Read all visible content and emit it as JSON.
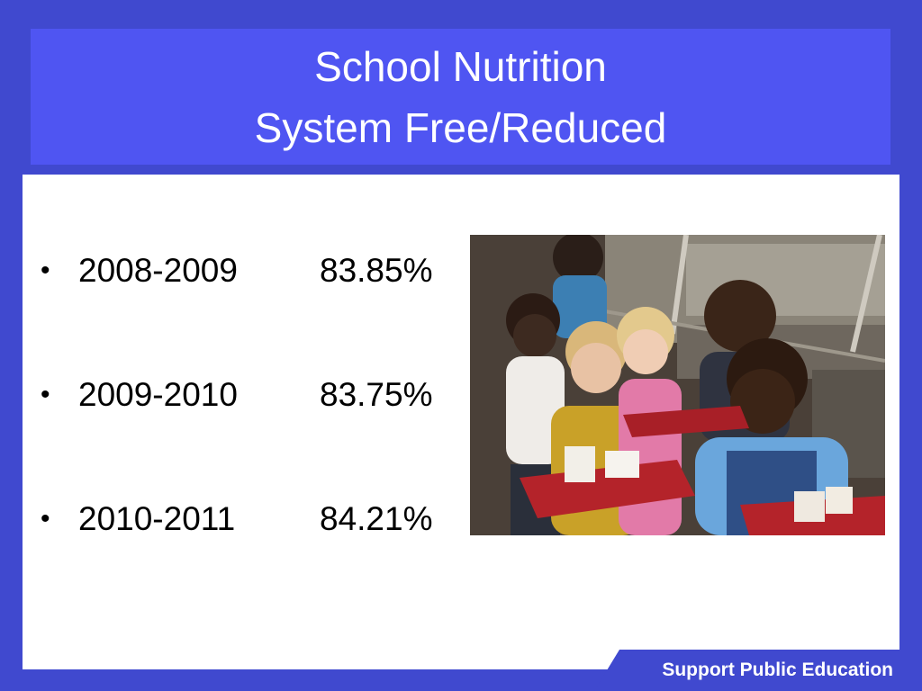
{
  "slide": {
    "title_line1": "School Nutrition",
    "title_line2": "System Free/Reduced"
  },
  "bullets": [
    {
      "year": "2008-2009",
      "value": "83.85%"
    },
    {
      "year": "2009-2010",
      "value": "83.75%"
    },
    {
      "year": "2010-2011",
      "value": "84.21%"
    }
  ],
  "bullet_char": "•",
  "footer": {
    "text": "Support Public Education"
  },
  "colors": {
    "frame": "#4049cf",
    "title_bg": "#4f55f2",
    "content_bg": "#ffffff",
    "title_text": "#ffffff",
    "body_text": "#000000"
  },
  "photo": {
    "icon": "cafeteria-children-photo"
  }
}
